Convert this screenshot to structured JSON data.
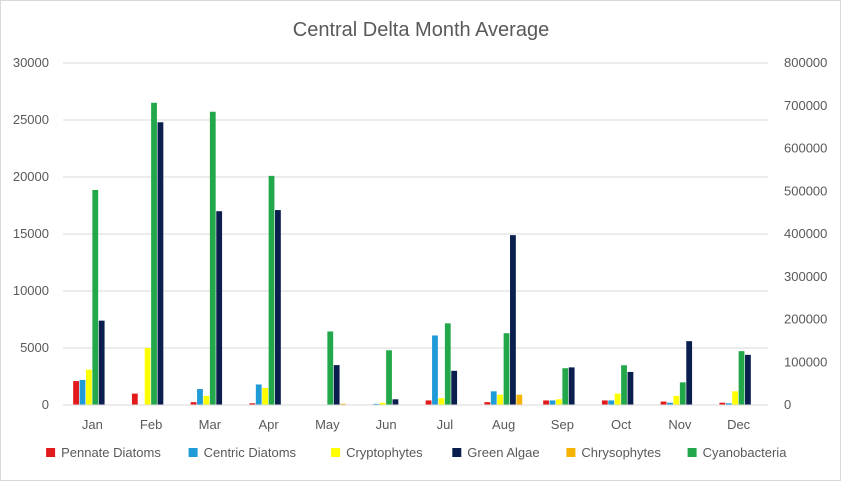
{
  "chart_data": {
    "type": "bar",
    "title": "Central Delta Month Average",
    "categories": [
      "Jan",
      "Feb",
      "Mar",
      "Apr",
      "May",
      "Jun",
      "Jul",
      "Aug",
      "Sep",
      "Oct",
      "Nov",
      "Dec"
    ],
    "left_axis": {
      "min": 0,
      "max": 30000,
      "ticks": [
        "0",
        "5000",
        "10000",
        "15000",
        "20000",
        "25000",
        "30000"
      ]
    },
    "right_axis": {
      "min": 0,
      "max": 800000,
      "ticks": [
        "0",
        "100000",
        "200000",
        "300000",
        "400000",
        "500000",
        "600000",
        "700000",
        "800000"
      ]
    },
    "grid": true,
    "legend_position": "bottom",
    "series": [
      {
        "name": "Pennate Diatoms",
        "color": "#e31a1c",
        "axis": "left",
        "values": [
          2100,
          1000,
          250,
          150,
          0,
          0,
          400,
          250,
          400,
          400,
          300,
          200
        ]
      },
      {
        "name": "Centric Diatoms",
        "color": "#1f9bd7",
        "axis": "left",
        "values": [
          2200,
          0,
          1400,
          1800,
          0,
          100,
          6100,
          1200,
          400,
          400,
          200,
          150
        ]
      },
      {
        "name": "Cryptophytes",
        "color": "#ffff00",
        "axis": "left",
        "values": [
          3100,
          5000,
          800,
          1500,
          0,
          200,
          600,
          900,
          500,
          1000,
          800,
          1200
        ]
      },
      {
        "name": "Green Algae",
        "color": "#0b1f4f",
        "axis": "left",
        "values": [
          7400,
          24800,
          17000,
          17100,
          3500,
          500,
          3000,
          14900,
          3300,
          2900,
          5600,
          4400
        ]
      },
      {
        "name": "Chrysophytes",
        "color": "#f4b400",
        "axis": "left",
        "values": [
          0,
          0,
          0,
          0,
          100,
          0,
          0,
          900,
          0,
          0,
          0,
          0
        ]
      },
      {
        "name": "Cyanobacteria",
        "color": "#22a84a",
        "axis": "right",
        "values": [
          503000,
          707000,
          686000,
          536000,
          172000,
          128000,
          191000,
          168000,
          86000,
          93000,
          53000,
          126000
        ]
      }
    ]
  }
}
